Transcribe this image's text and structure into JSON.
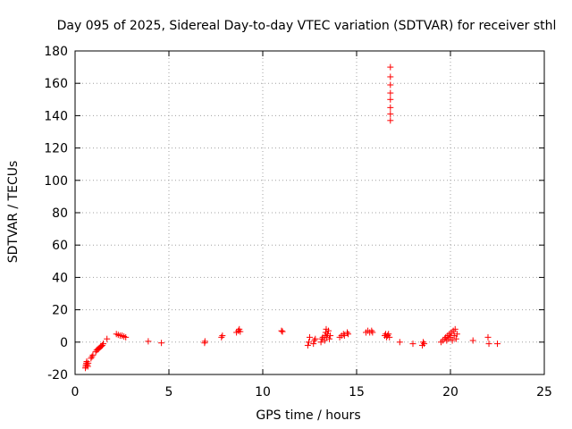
{
  "chart_data": {
    "type": "scatter",
    "title": "Day 095 of 2025, Sidereal Day-to-day VTEC variation (SDTVAR) for receiver sthl",
    "xlabel": "GPS time / hours",
    "ylabel": "SDTVAR / TECUs",
    "xlim": [
      0,
      25
    ],
    "ylim": [
      -20,
      180
    ],
    "x_ticks": [
      0,
      5,
      10,
      15,
      20,
      25
    ],
    "y_ticks": [
      -20,
      0,
      20,
      40,
      60,
      80,
      100,
      120,
      140,
      160,
      180
    ],
    "x_tick_labels": [
      "0",
      "5",
      "10",
      "15",
      "20",
      "25"
    ],
    "y_tick_labels": [
      "-20",
      "0",
      "20",
      "40",
      "60",
      "80",
      "100",
      "120",
      "140",
      "160",
      "180"
    ],
    "grid": true,
    "marker": "+",
    "series": [
      {
        "name": "SDTVAR",
        "color": "#ff0000",
        "points": [
          [
            0.55,
            -16
          ],
          [
            0.57,
            -15
          ],
          [
            0.58,
            -14
          ],
          [
            0.6,
            -13
          ],
          [
            0.62,
            -12
          ],
          [
            0.65,
            -14
          ],
          [
            0.68,
            -15
          ],
          [
            0.7,
            -13
          ],
          [
            0.85,
            -10
          ],
          [
            0.9,
            -9
          ],
          [
            0.95,
            -8
          ],
          [
            1.1,
            -6
          ],
          [
            1.15,
            -5
          ],
          [
            1.2,
            -4.5
          ],
          [
            1.25,
            -4
          ],
          [
            1.3,
            -3.5
          ],
          [
            1.35,
            -3
          ],
          [
            1.4,
            -2.5
          ],
          [
            1.45,
            -2
          ],
          [
            1.5,
            -1
          ],
          [
            1.7,
            2
          ],
          [
            2.2,
            5
          ],
          [
            2.3,
            4.5
          ],
          [
            2.4,
            4
          ],
          [
            2.5,
            4
          ],
          [
            2.6,
            3.5
          ],
          [
            2.7,
            3
          ],
          [
            3.9,
            0.5
          ],
          [
            4.6,
            -0.5
          ],
          [
            6.9,
            -0.5
          ],
          [
            6.92,
            0.5
          ],
          [
            7.8,
            3
          ],
          [
            7.85,
            4
          ],
          [
            8.6,
            6
          ],
          [
            8.7,
            7
          ],
          [
            8.75,
            8
          ],
          [
            8.8,
            6.5
          ],
          [
            11.0,
            7
          ],
          [
            11.05,
            6.5
          ],
          [
            12.4,
            -2
          ],
          [
            12.45,
            0
          ],
          [
            12.5,
            3
          ],
          [
            12.7,
            -1
          ],
          [
            12.75,
            1
          ],
          [
            12.8,
            2
          ],
          [
            13.1,
            0
          ],
          [
            13.15,
            2
          ],
          [
            13.2,
            3
          ],
          [
            13.3,
            1
          ],
          [
            13.32,
            4
          ],
          [
            13.35,
            6
          ],
          [
            13.38,
            8
          ],
          [
            13.4,
            3
          ],
          [
            13.45,
            5
          ],
          [
            13.5,
            7
          ],
          [
            13.55,
            2
          ],
          [
            13.6,
            4
          ],
          [
            14.1,
            3
          ],
          [
            14.2,
            4
          ],
          [
            14.3,
            5
          ],
          [
            14.35,
            4
          ],
          [
            14.5,
            6
          ],
          [
            14.55,
            5
          ],
          [
            15.5,
            6
          ],
          [
            15.6,
            7
          ],
          [
            15.7,
            6
          ],
          [
            15.8,
            7
          ],
          [
            15.85,
            6
          ],
          [
            16.5,
            4
          ],
          [
            16.55,
            5
          ],
          [
            16.6,
            3
          ],
          [
            16.65,
            4
          ],
          [
            16.7,
            5
          ],
          [
            16.75,
            3
          ],
          [
            16.8,
            137
          ],
          [
            16.8,
            141
          ],
          [
            16.8,
            145
          ],
          [
            16.8,
            150
          ],
          [
            16.8,
            154
          ],
          [
            16.8,
            159
          ],
          [
            16.8,
            164
          ],
          [
            16.8,
            170
          ],
          [
            17.3,
            0
          ],
          [
            18.0,
            -1
          ],
          [
            18.5,
            -2
          ],
          [
            18.55,
            0
          ],
          [
            18.6,
            -1
          ],
          [
            19.5,
            0
          ],
          [
            19.6,
            1
          ],
          [
            19.7,
            2
          ],
          [
            19.75,
            3
          ],
          [
            19.8,
            1
          ],
          [
            19.85,
            4
          ],
          [
            19.9,
            2
          ],
          [
            19.95,
            5
          ],
          [
            20.0,
            3
          ],
          [
            20.05,
            6
          ],
          [
            20.1,
            1
          ],
          [
            20.15,
            7
          ],
          [
            20.2,
            4
          ],
          [
            20.25,
            8
          ],
          [
            20.3,
            2
          ],
          [
            20.35,
            5
          ],
          [
            21.2,
            1
          ],
          [
            22.0,
            3
          ],
          [
            22.05,
            -1
          ],
          [
            22.5,
            -1
          ]
        ]
      }
    ]
  }
}
